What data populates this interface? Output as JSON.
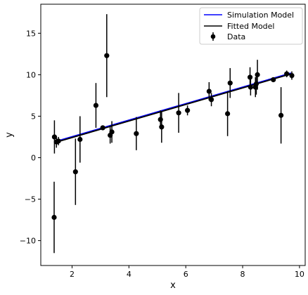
{
  "chart_data": {
    "type": "scatter",
    "xlabel": "x",
    "ylabel": "y",
    "xlim": [
      0.9,
      10.2
    ],
    "ylim": [
      -13.0,
      18.5
    ],
    "xticks": [
      2,
      4,
      6,
      8,
      10
    ],
    "yticks": [
      -10,
      -5,
      0,
      5,
      10,
      15
    ],
    "grid": false,
    "legend_position": "top-right",
    "legend": [
      "Simulation Model",
      "Fitted Model",
      "Data"
    ],
    "colors": {
      "simulation": "#0000ff",
      "fitted": "#000000",
      "data": "#000000"
    },
    "series": [
      {
        "name": "Simulation Model",
        "type": "line",
        "x": [
          1.37,
          9.7
        ],
        "y": [
          1.9,
          10.2
        ]
      },
      {
        "name": "Fitted Model",
        "type": "line",
        "x": [
          1.37,
          9.7
        ],
        "y": [
          1.8,
          10.1
        ]
      },
      {
        "name": "Data",
        "type": "errorbar",
        "points": [
          {
            "x": 1.37,
            "y": -7.2,
            "err": 4.3
          },
          {
            "x": 1.38,
            "y": 2.5,
            "err": 2.0
          },
          {
            "x": 1.45,
            "y": 1.9,
            "err": 0.7
          },
          {
            "x": 1.52,
            "y": 2.0,
            "err": 0.5
          },
          {
            "x": 2.12,
            "y": -1.7,
            "err": 4.0
          },
          {
            "x": 2.28,
            "y": 2.2,
            "err": 2.8
          },
          {
            "x": 2.84,
            "y": 6.3,
            "err": 2.7
          },
          {
            "x": 3.08,
            "y": 3.6,
            "err": 0.3
          },
          {
            "x": 3.22,
            "y": 12.3,
            "err": 5.0
          },
          {
            "x": 3.34,
            "y": 2.7,
            "err": 1.0
          },
          {
            "x": 3.4,
            "y": 3.1,
            "err": 1.3
          },
          {
            "x": 4.26,
            "y": 2.9,
            "err": 2.0
          },
          {
            "x": 5.11,
            "y": 4.6,
            "err": 1.1
          },
          {
            "x": 5.15,
            "y": 3.7,
            "err": 1.9
          },
          {
            "x": 5.75,
            "y": 5.4,
            "err": 2.4
          },
          {
            "x": 6.06,
            "y": 5.7,
            "err": 0.6
          },
          {
            "x": 6.82,
            "y": 8.0,
            "err": 1.1
          },
          {
            "x": 6.9,
            "y": 7.0,
            "err": 0.8
          },
          {
            "x": 7.47,
            "y": 5.3,
            "err": 2.7
          },
          {
            "x": 7.56,
            "y": 9.0,
            "err": 1.8
          },
          {
            "x": 8.26,
            "y": 9.7,
            "err": 1.2
          },
          {
            "x": 8.28,
            "y": 8.5,
            "err": 1.0
          },
          {
            "x": 8.45,
            "y": 8.5,
            "err": 1.2
          },
          {
            "x": 8.48,
            "y": 8.9,
            "err": 1.3
          },
          {
            "x": 8.52,
            "y": 10.0,
            "err": 1.8
          },
          {
            "x": 9.08,
            "y": 9.4,
            "err": 0.3
          },
          {
            "x": 9.35,
            "y": 5.1,
            "err": 3.4
          },
          {
            "x": 9.55,
            "y": 10.1,
            "err": 0.4
          },
          {
            "x": 9.73,
            "y": 9.9,
            "err": 0.5
          }
        ]
      }
    ]
  }
}
